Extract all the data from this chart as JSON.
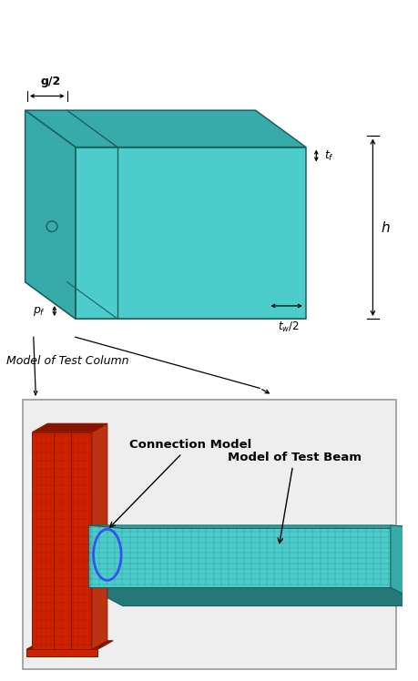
{
  "bg_color": "#ffffff",
  "teal_color": "#4DCCCC",
  "teal_mid": "#38AAAA",
  "teal_dark": "#257878",
  "teal_edge": "#1A6060",
  "red_color": "#CC2200",
  "red_mid": "#BB3311",
  "red_dark": "#881400",
  "blue_ellipse_color": "#3355EE",
  "grid_teal": "#1A7070",
  "grid_red": "#AA1100",
  "label_g2": "g/2",
  "label_tf": "$t_f$",
  "label_h": "$h$",
  "label_tw2": "$t_w/2$",
  "label_pf": "$p_f$",
  "label_col": "Model of Test Column",
  "label_conn": "Connection Model",
  "label_beam": "Model of Test Beam",
  "figsize": [
    4.6,
    7.48
  ],
  "dpi": 100
}
